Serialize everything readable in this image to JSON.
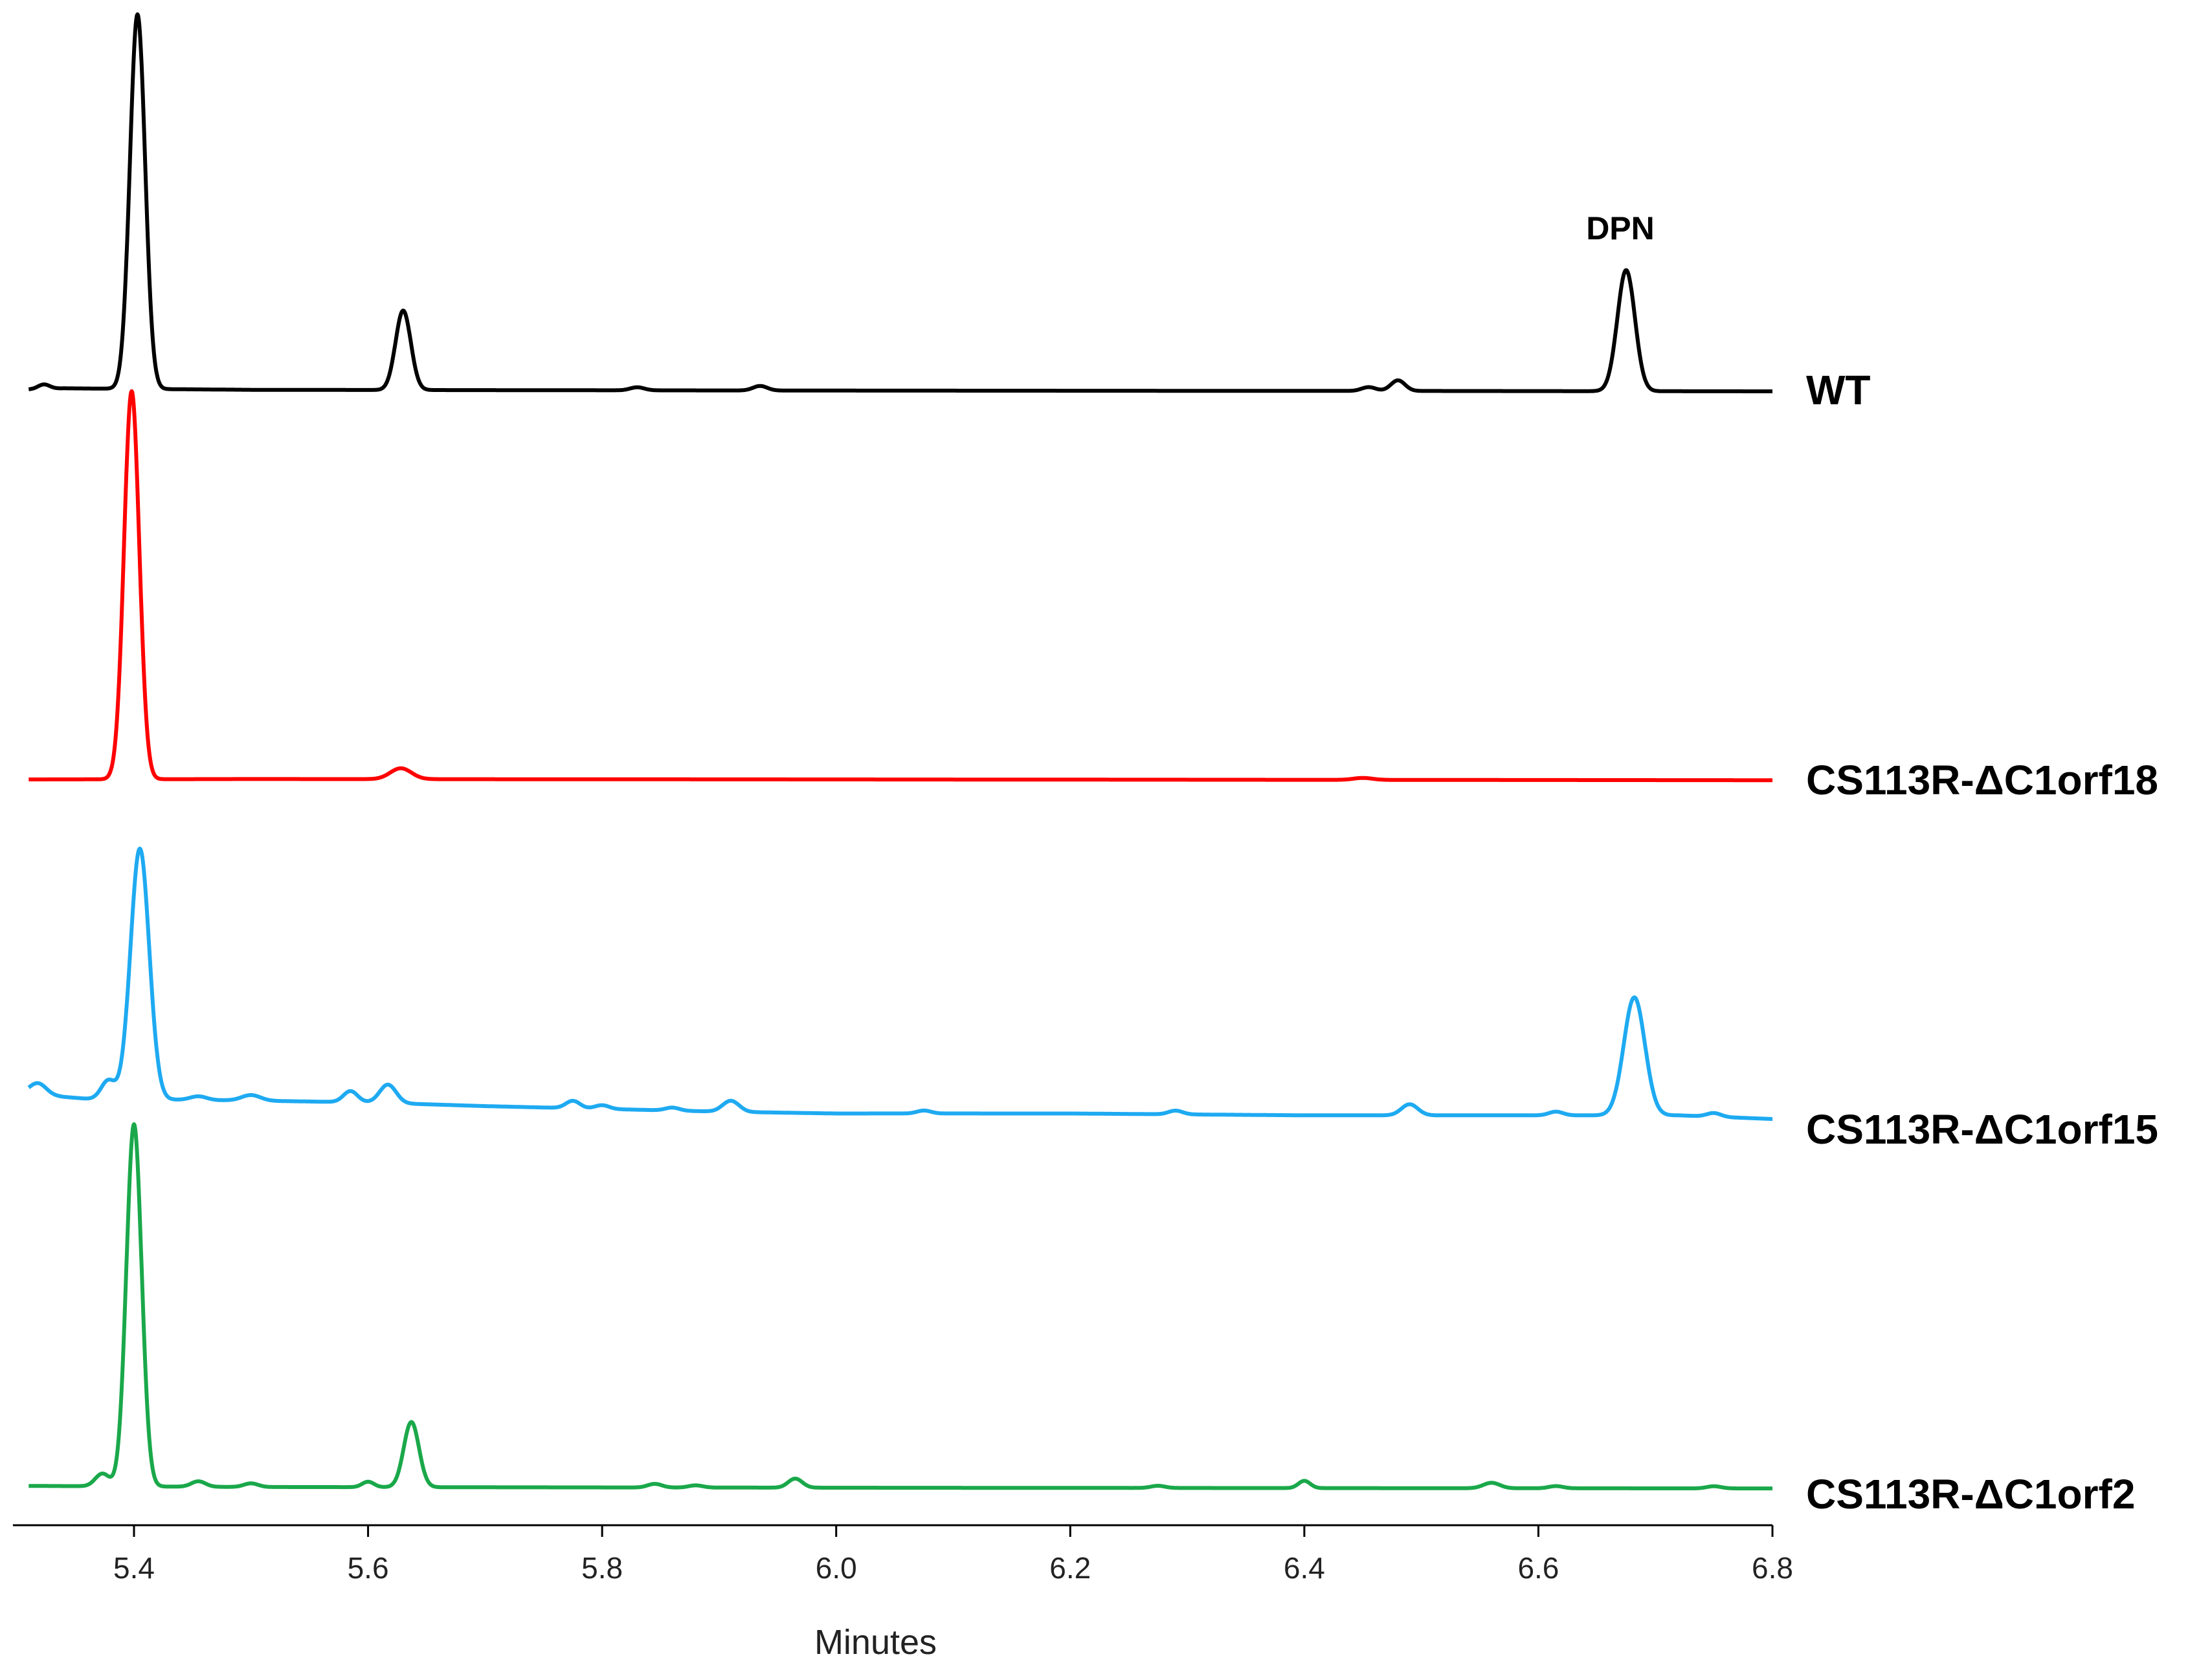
{
  "chart_data": {
    "type": "line",
    "xlabel": "Minutes",
    "xlim": [
      5.3,
      6.8
    ],
    "xticks": [
      5.4,
      5.6,
      5.8,
      6.0,
      6.2,
      6.4,
      6.6,
      6.8
    ],
    "xtick_labels": [
      "5.4",
      "5.6",
      "5.8",
      "6.0",
      "6.2",
      "6.4",
      "6.6",
      "6.8"
    ],
    "annotations": [
      {
        "text": "DPN",
        "x": 6.67,
        "series": "WT"
      }
    ],
    "series": [
      {
        "name": "WT",
        "color": "#000000",
        "baseline": [
          [
            5.31,
            0.005
          ],
          [
            5.34,
            0.008
          ],
          [
            5.5,
            0.004
          ],
          [
            6.0,
            0.002
          ],
          [
            6.5,
            0.001
          ],
          [
            6.8,
            0.0
          ]
        ],
        "peaks": [
          {
            "x": 5.323,
            "height": 0.012,
            "width": 0.005
          },
          {
            "x": 5.403,
            "height": 0.99,
            "width": 0.0065
          },
          {
            "x": 5.63,
            "height": 0.21,
            "width": 0.0065
          },
          {
            "x": 5.83,
            "height": 0.008,
            "width": 0.006
          },
          {
            "x": 5.935,
            "height": 0.012,
            "width": 0.006
          },
          {
            "x": 6.455,
            "height": 0.01,
            "width": 0.006
          },
          {
            "x": 6.48,
            "height": 0.028,
            "width": 0.006
          },
          {
            "x": 6.675,
            "height": 0.32,
            "width": 0.0075
          }
        ]
      },
      {
        "name": "CS113R-ΔC1orf18",
        "color": "#ff0000",
        "baseline": [
          [
            5.31,
            0.0
          ],
          [
            5.5,
            0.001
          ],
          [
            6.0,
            0.0
          ],
          [
            6.8,
            -0.002
          ]
        ],
        "peaks": [
          {
            "x": 5.398,
            "height": 1.0,
            "width": 0.0065
          },
          {
            "x": 5.628,
            "height": 0.028,
            "width": 0.009
          },
          {
            "x": 6.45,
            "height": 0.005,
            "width": 0.008
          }
        ]
      },
      {
        "name": "CS113R-ΔC1orf15",
        "color": "#1eaaf1",
        "baseline": [
          [
            5.31,
            0.07
          ],
          [
            5.34,
            0.06
          ],
          [
            5.36,
            0.055
          ],
          [
            5.5,
            0.05
          ],
          [
            5.6,
            0.045
          ],
          [
            5.7,
            0.035
          ],
          [
            5.9,
            0.02
          ],
          [
            6.0,
            0.015
          ],
          [
            6.2,
            0.015
          ],
          [
            6.4,
            0.01
          ],
          [
            6.6,
            0.01
          ],
          [
            6.72,
            0.01
          ],
          [
            6.8,
            0.0
          ]
        ],
        "peaks": [
          {
            "x": 5.318,
            "height": 0.03,
            "width": 0.007
          },
          {
            "x": 5.378,
            "height": 0.05,
            "width": 0.006
          },
          {
            "x": 5.405,
            "height": 0.68,
            "width": 0.008
          },
          {
            "x": 5.455,
            "height": 0.01,
            "width": 0.007
          },
          {
            "x": 5.5,
            "height": 0.015,
            "width": 0.008
          },
          {
            "x": 5.585,
            "height": 0.03,
            "width": 0.006
          },
          {
            "x": 5.617,
            "height": 0.05,
            "width": 0.007
          },
          {
            "x": 5.775,
            "height": 0.02,
            "width": 0.006
          },
          {
            "x": 5.8,
            "height": 0.01,
            "width": 0.006
          },
          {
            "x": 5.86,
            "height": 0.008,
            "width": 0.006
          },
          {
            "x": 5.91,
            "height": 0.03,
            "width": 0.007
          },
          {
            "x": 6.075,
            "height": 0.008,
            "width": 0.006
          },
          {
            "x": 6.29,
            "height": 0.01,
            "width": 0.006
          },
          {
            "x": 6.49,
            "height": 0.03,
            "width": 0.007
          },
          {
            "x": 6.615,
            "height": 0.01,
            "width": 0.006
          },
          {
            "x": 6.682,
            "height": 0.32,
            "width": 0.009
          },
          {
            "x": 6.75,
            "height": 0.01,
            "width": 0.006
          }
        ]
      },
      {
        "name": "CS113R-ΔC1orf2",
        "color": "#1aa84a",
        "baseline": [
          [
            5.31,
            0.005
          ],
          [
            5.5,
            0.002
          ],
          [
            6.0,
            0.0
          ],
          [
            6.8,
            -0.002
          ]
        ],
        "peaks": [
          {
            "x": 5.373,
            "height": 0.035,
            "width": 0.006
          },
          {
            "x": 5.4,
            "height": 1.0,
            "width": 0.0065
          },
          {
            "x": 5.455,
            "height": 0.015,
            "width": 0.006
          },
          {
            "x": 5.5,
            "height": 0.01,
            "width": 0.006
          },
          {
            "x": 5.6,
            "height": 0.015,
            "width": 0.005
          },
          {
            "x": 5.637,
            "height": 0.18,
            "width": 0.0065
          },
          {
            "x": 5.845,
            "height": 0.01,
            "width": 0.006
          },
          {
            "x": 5.88,
            "height": 0.006,
            "width": 0.006
          },
          {
            "x": 5.965,
            "height": 0.025,
            "width": 0.006
          },
          {
            "x": 6.275,
            "height": 0.006,
            "width": 0.006
          },
          {
            "x": 6.4,
            "height": 0.02,
            "width": 0.005
          },
          {
            "x": 6.56,
            "height": 0.015,
            "width": 0.007
          },
          {
            "x": 6.615,
            "height": 0.006,
            "width": 0.006
          },
          {
            "x": 6.75,
            "height": 0.006,
            "width": 0.006
          }
        ]
      }
    ]
  }
}
